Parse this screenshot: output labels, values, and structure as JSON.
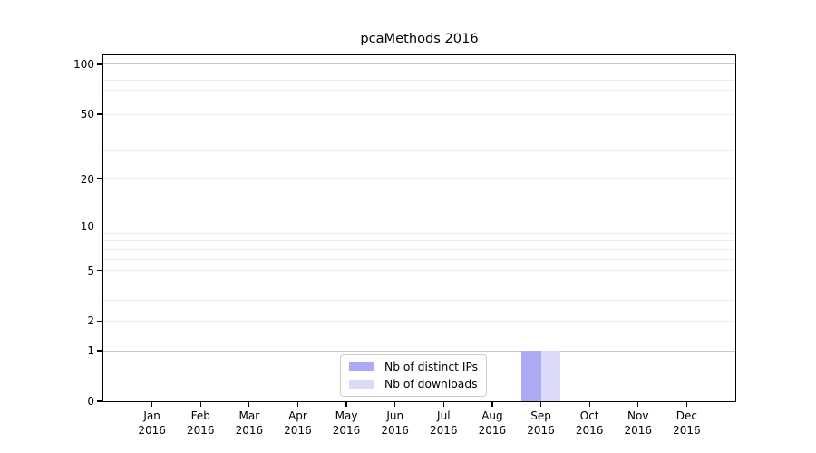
{
  "chart_data": {
    "type": "bar",
    "title": "pcaMethods 2016",
    "x_categories": [
      {
        "month": "Jan",
        "year": "2016"
      },
      {
        "month": "Feb",
        "year": "2016"
      },
      {
        "month": "Mar",
        "year": "2016"
      },
      {
        "month": "Apr",
        "year": "2016"
      },
      {
        "month": "May",
        "year": "2016"
      },
      {
        "month": "Jun",
        "year": "2016"
      },
      {
        "month": "Jul",
        "year": "2016"
      },
      {
        "month": "Aug",
        "year": "2016"
      },
      {
        "month": "Sep",
        "year": "2016"
      },
      {
        "month": "Oct",
        "year": "2016"
      },
      {
        "month": "Nov",
        "year": "2016"
      },
      {
        "month": "Dec",
        "year": "2016"
      }
    ],
    "series": [
      {
        "name": "Nb of distinct IPs",
        "color": "#aaaaf5",
        "values": [
          0,
          0,
          0,
          0,
          0,
          0,
          0,
          0,
          1,
          0,
          0,
          0
        ]
      },
      {
        "name": "Nb of downloads",
        "color": "#dbdbf9",
        "values": [
          0,
          0,
          0,
          0,
          0,
          0,
          0,
          0,
          1,
          0,
          0,
          0
        ]
      }
    ],
    "y_axis": {
      "scale": "log1p",
      "labeled_ticks": [
        0,
        1,
        2,
        5,
        10,
        20,
        50,
        100
      ],
      "major_gridlines": [
        1,
        10,
        100
      ],
      "minor_gridlines": [
        2,
        3,
        4,
        5,
        6,
        7,
        8,
        9,
        20,
        30,
        40,
        50,
        60,
        70,
        80,
        90
      ],
      "max": 113.3
    },
    "grid": {
      "major_color": "#c9c9c9",
      "minor_color": "#ececec"
    },
    "legend": {
      "position": "lower center"
    }
  }
}
